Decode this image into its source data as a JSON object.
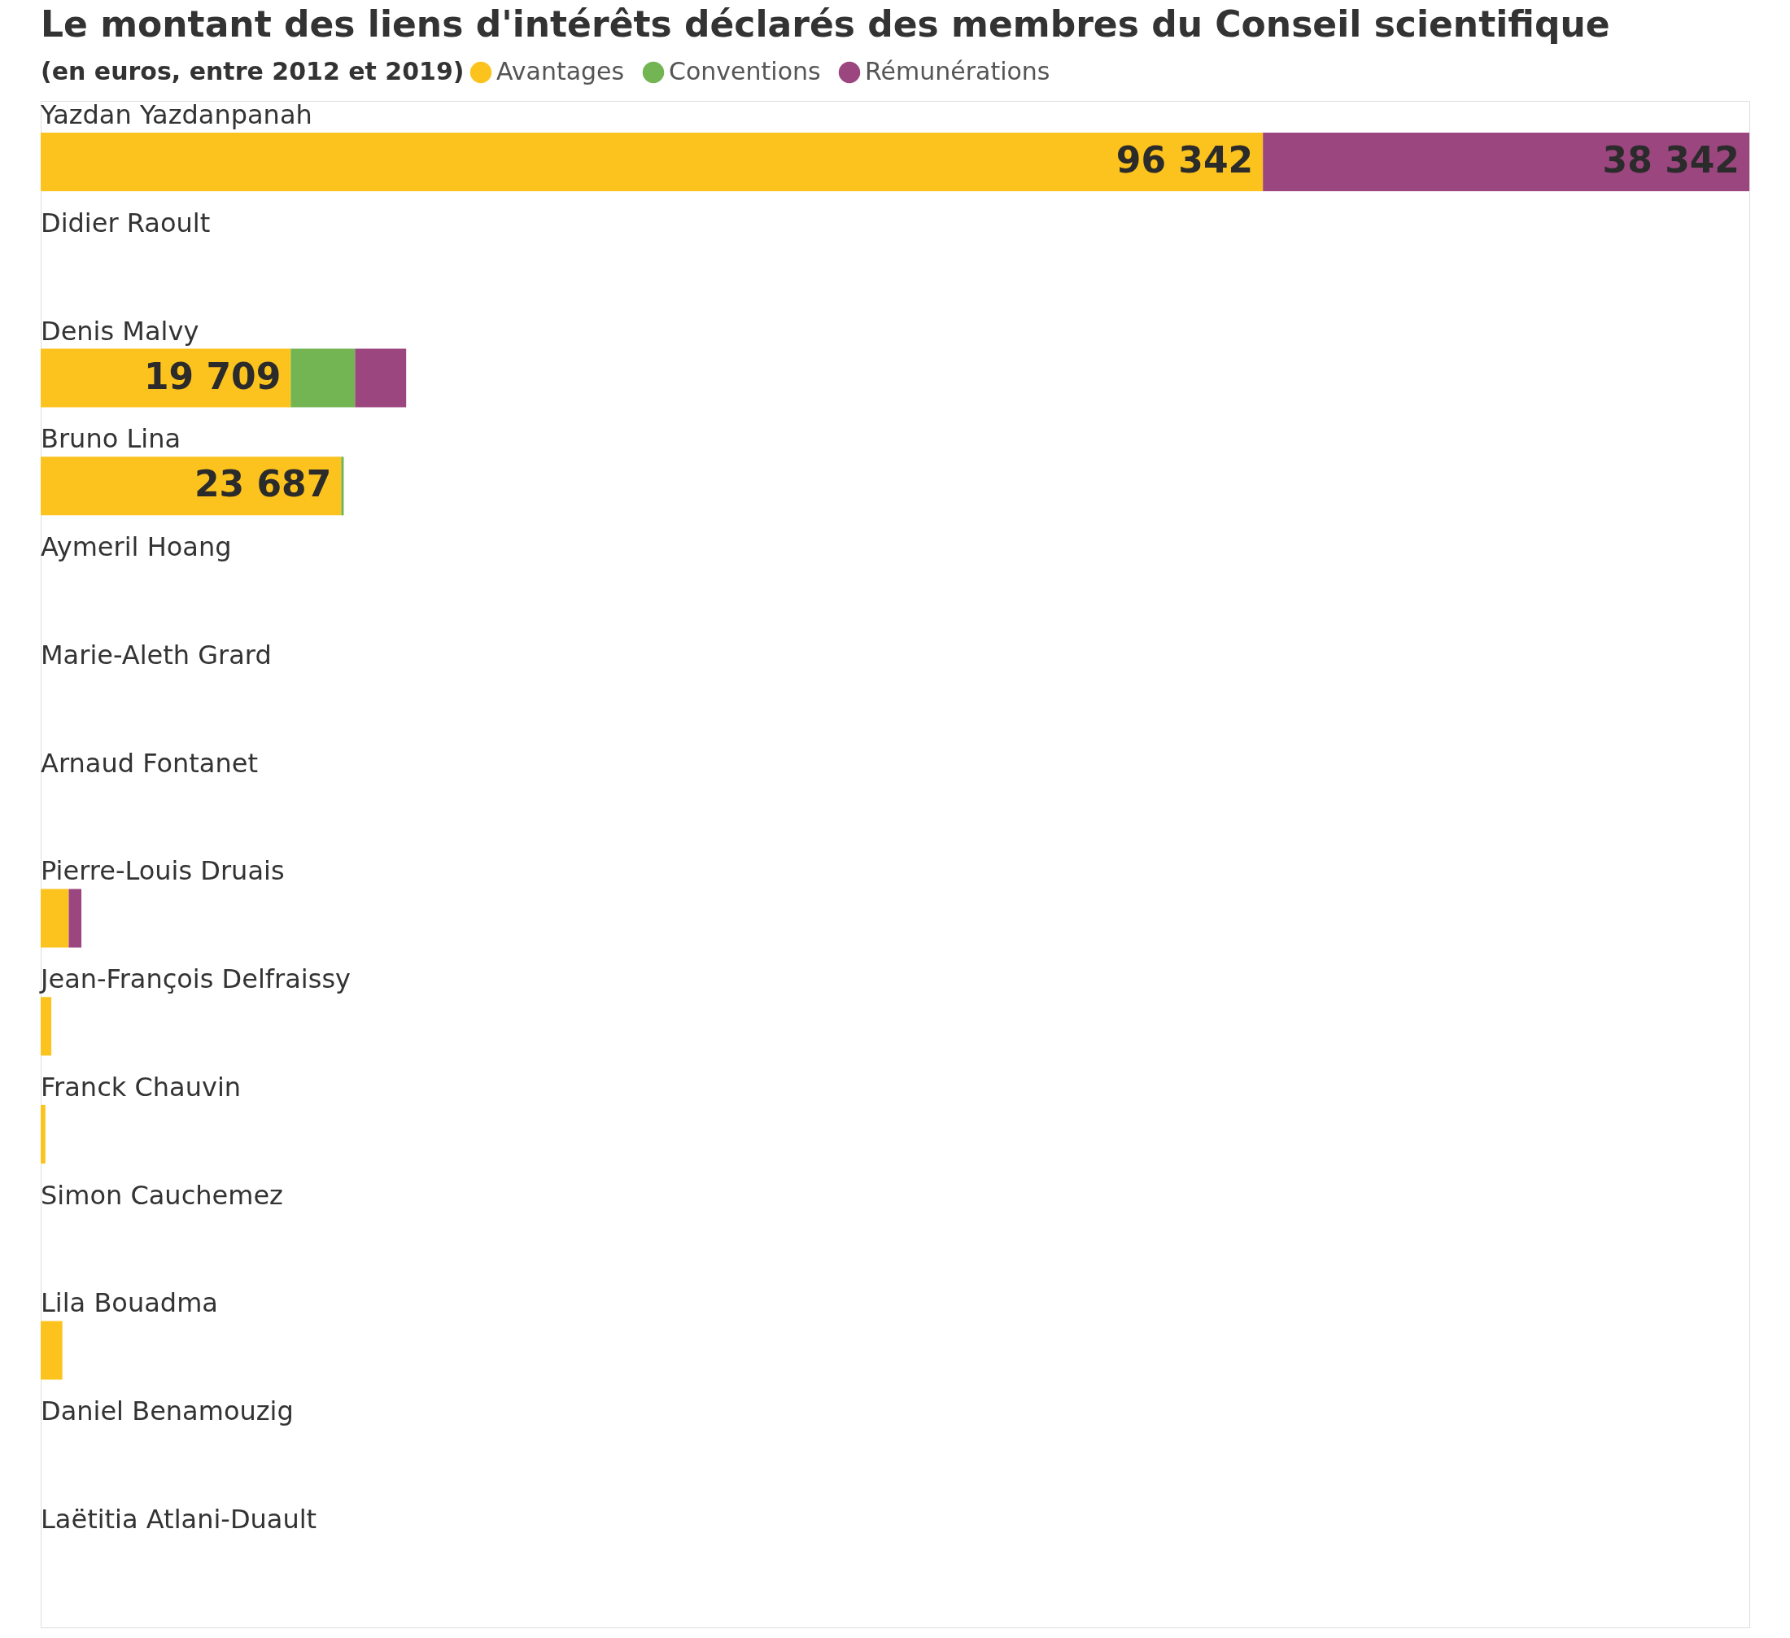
{
  "chart_data": {
    "type": "bar",
    "orientation": "horizontal",
    "stacked": true,
    "title": "Le montant des liens d'intérêts déclarés des membres du Conseil scientifique",
    "legend_title": "(en euros, entre 2012 et 2019)",
    "legend": "top left",
    "categories": [
      "Yazdan Yazdanpanah",
      "Didier Raoult",
      "Denis Malvy",
      "Bruno Lina",
      "Aymeril Hoang",
      "Marie-Aleth Grard",
      "Arnaud Fontanet",
      "Pierre-Louis Druais",
      "Jean-François Delfraissy",
      "Franck Chauvin",
      "Simon Cauchemez",
      "Lila Bouadma",
      "Daniel Benamouzig",
      "Laëtitia Atlani-Duault"
    ],
    "series": [
      {
        "name": "Avantages",
        "color": "#fcc31e",
        "values": [
          96342,
          null,
          19709,
          23687,
          null,
          null,
          null,
          2210,
          840,
          370,
          null,
          1710,
          null,
          null
        ],
        "value_labels": [
          "96 342",
          null,
          "19 709",
          "23 687",
          null,
          null,
          null,
          null,
          null,
          null,
          null,
          null,
          null,
          null
        ]
      },
      {
        "name": "Conventions",
        "color": "#72b552",
        "values": [
          null,
          null,
          5070,
          200,
          null,
          null,
          null,
          null,
          null,
          null,
          null,
          null,
          null,
          null
        ]
      },
      {
        "name": "Rémunérations",
        "color": "#9c4680",
        "values": [
          38342,
          null,
          4030,
          null,
          null,
          null,
          null,
          1000,
          null,
          null,
          null,
          null,
          null,
          null
        ],
        "value_labels": [
          "38 342",
          null,
          null,
          null,
          null,
          null,
          null,
          null,
          null,
          null,
          null,
          null,
          null,
          null
        ]
      }
    ]
  }
}
